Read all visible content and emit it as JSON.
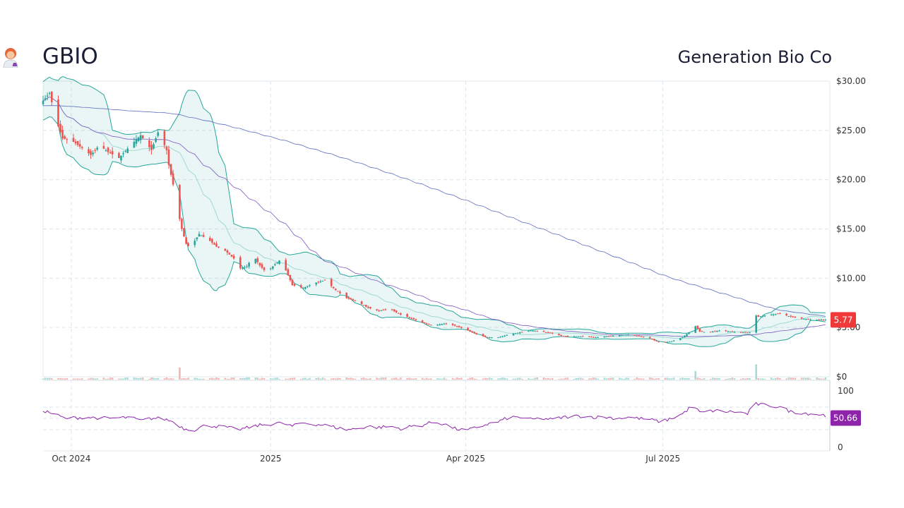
{
  "header": {
    "ticker": "GBIO",
    "company": "Generation Bio Co",
    "emoji_icon": "scientist-woman-emoji"
  },
  "chart_data": {
    "type": "candlestick",
    "price_axis": {
      "ticks": [
        0,
        5,
        10,
        15,
        20,
        25,
        30
      ],
      "tick_labels": [
        "$0",
        "$5.00",
        "$10.00",
        "$15.00",
        "$20.00",
        "$25.00",
        "$30.00"
      ],
      "ylim": [
        0,
        30
      ]
    },
    "rsi_axis": {
      "ticks": [
        0,
        100
      ],
      "tick_labels": [
        "0",
        "100"
      ],
      "ylim": [
        0,
        100
      ]
    },
    "x_ticks": [
      {
        "label": "Oct 2024",
        "day": 13
      },
      {
        "label": "2025",
        "day": 105
      },
      {
        "label": "Apr 2025",
        "day": 195
      },
      {
        "label": "Jul 2025",
        "day": 286
      }
    ],
    "x_range_days": [
      0,
      363
    ],
    "last_price": 5.77,
    "last_price_label": "5.77",
    "last_rsi": 50.66,
    "last_rsi_label": "50.66",
    "colors": {
      "up": "#26a69a",
      "down": "#ef5350",
      "bollinger": "#26a69a",
      "sma": "#5c6bc0",
      "rsi": "#8e24aa",
      "price_badge": "#f03a3a",
      "rsi_badge": "#8e24aa"
    },
    "close_anchors": [
      [
        0,
        28.0
      ],
      [
        3,
        28.8
      ],
      [
        6,
        26.0
      ],
      [
        9,
        24.2
      ],
      [
        13,
        24.0
      ],
      [
        18,
        23.2
      ],
      [
        22,
        22.5
      ],
      [
        26,
        23.5
      ],
      [
        30,
        22.8
      ],
      [
        35,
        22.2
      ],
      [
        40,
        23.4
      ],
      [
        45,
        24.5
      ],
      [
        50,
        23.0
      ],
      [
        53,
        24.8
      ],
      [
        55,
        24.0
      ],
      [
        57,
        23.0
      ],
      [
        58,
        21.5
      ],
      [
        60,
        19.5
      ],
      [
        62,
        17.0
      ],
      [
        64,
        15.0
      ],
      [
        66,
        13.5
      ],
      [
        68,
        13.0
      ],
      [
        70,
        13.8
      ],
      [
        72,
        14.5
      ],
      [
        74,
        14.2
      ],
      [
        77,
        13.8
      ],
      [
        80,
        13.2
      ],
      [
        84,
        12.8
      ],
      [
        88,
        12.0
      ],
      [
        91,
        11.0
      ],
      [
        94,
        11.2
      ],
      [
        97,
        12.3
      ],
      [
        100,
        11.3
      ],
      [
        103,
        10.6
      ],
      [
        107,
        11.4
      ],
      [
        110,
        12.0
      ],
      [
        112,
        10.8
      ],
      [
        115,
        9.3
      ],
      [
        120,
        9.0
      ],
      [
        125,
        9.5
      ],
      [
        130,
        9.8
      ],
      [
        135,
        8.8
      ],
      [
        140,
        8.0
      ],
      [
        145,
        7.6
      ],
      [
        150,
        7.0
      ],
      [
        155,
        6.7
      ],
      [
        160,
        6.9
      ],
      [
        165,
        6.3
      ],
      [
        170,
        5.9
      ],
      [
        175,
        5.5
      ],
      [
        180,
        5.2
      ],
      [
        185,
        5.4
      ],
      [
        190,
        5.2
      ],
      [
        195,
        4.8
      ],
      [
        200,
        4.3
      ],
      [
        205,
        4.0
      ],
      [
        210,
        4.0
      ],
      [
        215,
        4.3
      ],
      [
        220,
        4.5
      ],
      [
        225,
        4.7
      ],
      [
        230,
        4.6
      ],
      [
        235,
        4.4
      ],
      [
        240,
        4.1
      ],
      [
        245,
        4.1
      ],
      [
        250,
        4.1
      ],
      [
        255,
        4.0
      ],
      [
        260,
        4.1
      ],
      [
        265,
        4.2
      ],
      [
        270,
        4.3
      ],
      [
        275,
        4.1
      ],
      [
        280,
        3.9
      ],
      [
        285,
        3.4
      ],
      [
        290,
        3.6
      ],
      [
        295,
        4.0
      ],
      [
        298,
        4.5
      ],
      [
        300,
        5.4
      ],
      [
        303,
        4.6
      ],
      [
        307,
        4.5
      ],
      [
        312,
        4.7
      ],
      [
        317,
        4.6
      ],
      [
        322,
        4.5
      ],
      [
        326,
        4.5
      ],
      [
        328,
        6.3
      ],
      [
        330,
        6.1
      ],
      [
        335,
        6.3
      ],
      [
        340,
        6.4
      ],
      [
        345,
        6.1
      ],
      [
        350,
        5.9
      ],
      [
        355,
        5.8
      ],
      [
        363,
        5.77
      ]
    ],
    "rsi_anchors": [
      [
        0,
        64
      ],
      [
        5,
        58
      ],
      [
        10,
        50
      ],
      [
        20,
        52
      ],
      [
        30,
        50
      ],
      [
        40,
        52
      ],
      [
        45,
        46
      ],
      [
        50,
        50
      ],
      [
        55,
        50
      ],
      [
        60,
        44
      ],
      [
        65,
        32
      ],
      [
        70,
        30
      ],
      [
        75,
        38
      ],
      [
        80,
        36
      ],
      [
        85,
        34
      ],
      [
        90,
        30
      ],
      [
        95,
        34
      ],
      [
        100,
        38
      ],
      [
        105,
        40
      ],
      [
        110,
        42
      ],
      [
        115,
        36
      ],
      [
        120,
        42
      ],
      [
        125,
        40
      ],
      [
        130,
        38
      ],
      [
        135,
        34
      ],
      [
        140,
        30
      ],
      [
        145,
        32
      ],
      [
        150,
        36
      ],
      [
        155,
        34
      ],
      [
        160,
        36
      ],
      [
        165,
        32
      ],
      [
        170,
        36
      ],
      [
        175,
        38
      ],
      [
        180,
        44
      ],
      [
        185,
        40
      ],
      [
        190,
        32
      ],
      [
        195,
        28
      ],
      [
        200,
        34
      ],
      [
        205,
        40
      ],
      [
        210,
        44
      ],
      [
        215,
        52
      ],
      [
        220,
        52
      ],
      [
        225,
        48
      ],
      [
        230,
        50
      ],
      [
        235,
        48
      ],
      [
        240,
        52
      ],
      [
        245,
        54
      ],
      [
        250,
        54
      ],
      [
        255,
        52
      ],
      [
        260,
        52
      ],
      [
        265,
        50
      ],
      [
        270,
        52
      ],
      [
        275,
        50
      ],
      [
        280,
        48
      ],
      [
        285,
        44
      ],
      [
        290,
        50
      ],
      [
        295,
        58
      ],
      [
        300,
        74
      ],
      [
        303,
        60
      ],
      [
        310,
        64
      ],
      [
        315,
        62
      ],
      [
        320,
        62
      ],
      [
        325,
        58
      ],
      [
        328,
        76
      ],
      [
        332,
        74
      ],
      [
        340,
        70
      ],
      [
        345,
        62
      ],
      [
        350,
        60
      ],
      [
        355,
        58
      ],
      [
        360,
        56
      ],
      [
        363,
        50.66
      ]
    ]
  }
}
